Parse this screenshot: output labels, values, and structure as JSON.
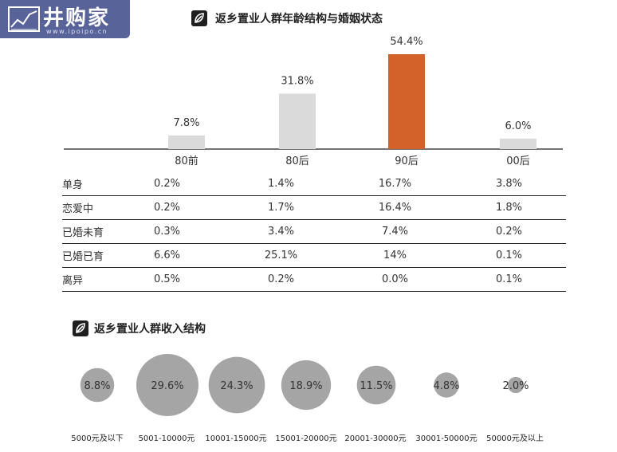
{
  "logo": {
    "text": "井购家",
    "url": "www.ipoipo.cn"
  },
  "sections": {
    "age": {
      "title": "返乡置业人群年龄结构与婚姻状态"
    },
    "income": {
      "title": "返乡置业人群收入结构"
    }
  },
  "chart_data": [
    {
      "type": "bar",
      "categories": [
        "80前",
        "80后",
        "90后",
        "00后"
      ],
      "values": [
        7.8,
        31.8,
        54.4,
        6.0
      ],
      "value_labels": [
        "7.8%",
        "31.8%",
        "54.4%",
        "6.0%"
      ],
      "colors": [
        "#d9dad9",
        "#d9dad9",
        "#d2622a",
        "#d9dad9"
      ],
      "title": "返乡置业人群年龄结构与婚姻状态",
      "ylim": [
        0,
        54.4
      ]
    },
    {
      "type": "table",
      "columns": [
        "80前",
        "80后",
        "90后",
        "00后"
      ],
      "rows": [
        {
          "label": "单身",
          "values": [
            "0.2%",
            "1.4%",
            "16.7%",
            "3.8%"
          ]
        },
        {
          "label": "恋爱中",
          "values": [
            "0.2%",
            "1.7%",
            "16.4%",
            "1.8%"
          ]
        },
        {
          "label": "已婚未育",
          "values": [
            "0.3%",
            "3.4%",
            "7.4%",
            "0.2%"
          ]
        },
        {
          "label": "已婚已育",
          "values": [
            "6.6%",
            "25.1%",
            "14%",
            "0.1%"
          ]
        },
        {
          "label": "离异",
          "values": [
            "0.5%",
            "0.2%",
            "0.0%",
            "0.1%"
          ]
        }
      ]
    },
    {
      "type": "bubble",
      "title": "返乡置业人群收入结构",
      "categories": [
        "5000元及以下",
        "5001-10000元",
        "10001-15000元",
        "15001-20000元",
        "20001-30000元",
        "30001-50000元",
        "50000元及以上"
      ],
      "values": [
        8.8,
        29.6,
        24.3,
        18.9,
        11.5,
        4.8,
        2.0
      ],
      "value_labels": [
        "8.8%",
        "29.6%",
        "24.3%",
        "18.9%",
        "11.5%",
        "4.8%",
        "2.0%"
      ],
      "color": "#a5a5a5"
    }
  ]
}
